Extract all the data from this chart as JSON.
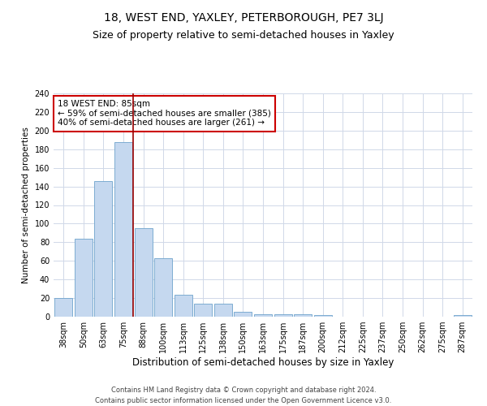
{
  "title": "18, WEST END, YAXLEY, PETERBOROUGH, PE7 3LJ",
  "subtitle": "Size of property relative to semi-detached houses in Yaxley",
  "xlabel": "Distribution of semi-detached houses by size in Yaxley",
  "ylabel": "Number of semi-detached properties",
  "categories": [
    "38sqm",
    "50sqm",
    "63sqm",
    "75sqm",
    "88sqm",
    "100sqm",
    "113sqm",
    "125sqm",
    "138sqm",
    "150sqm",
    "163sqm",
    "175sqm",
    "187sqm",
    "200sqm",
    "212sqm",
    "225sqm",
    "237sqm",
    "250sqm",
    "262sqm",
    "275sqm",
    "287sqm"
  ],
  "values": [
    20,
    84,
    146,
    188,
    95,
    63,
    24,
    14,
    14,
    5,
    3,
    3,
    3,
    2,
    0,
    0,
    0,
    0,
    0,
    0,
    2
  ],
  "bar_color": "#c5d8ef",
  "bar_edgecolor": "#6ea3cc",
  "vline_xindex": 4,
  "vline_color": "#990000",
  "annotation_text": "18 WEST END: 85sqm\n← 59% of semi-detached houses are smaller (385)\n40% of semi-detached houses are larger (261) →",
  "annotation_box_edgecolor": "#cc0000",
  "annotation_box_facecolor": "#ffffff",
  "ylim": [
    0,
    240
  ],
  "yticks": [
    0,
    20,
    40,
    60,
    80,
    100,
    120,
    140,
    160,
    180,
    200,
    220,
    240
  ],
  "grid_color": "#d0d8e8",
  "footer_text": "Contains HM Land Registry data © Crown copyright and database right 2024.\nContains public sector information licensed under the Open Government Licence v3.0.",
  "title_fontsize": 10,
  "subtitle_fontsize": 9,
  "xlabel_fontsize": 8.5,
  "ylabel_fontsize": 7.5,
  "tick_fontsize": 7,
  "annotation_fontsize": 7.5,
  "footer_fontsize": 6
}
